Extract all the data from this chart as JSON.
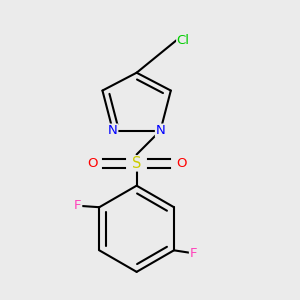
{
  "background_color": "#ebebeb",
  "bond_color": "#000000",
  "bond_lw": 1.5,
  "fig_width": 3.0,
  "fig_height": 3.0,
  "dpi": 100,
  "colors": {
    "Cl": "#00cc00",
    "N": "#0000ff",
    "S": "#cccc00",
    "O": "#ff0000",
    "F": "#ff44bb",
    "C": "#000000"
  }
}
